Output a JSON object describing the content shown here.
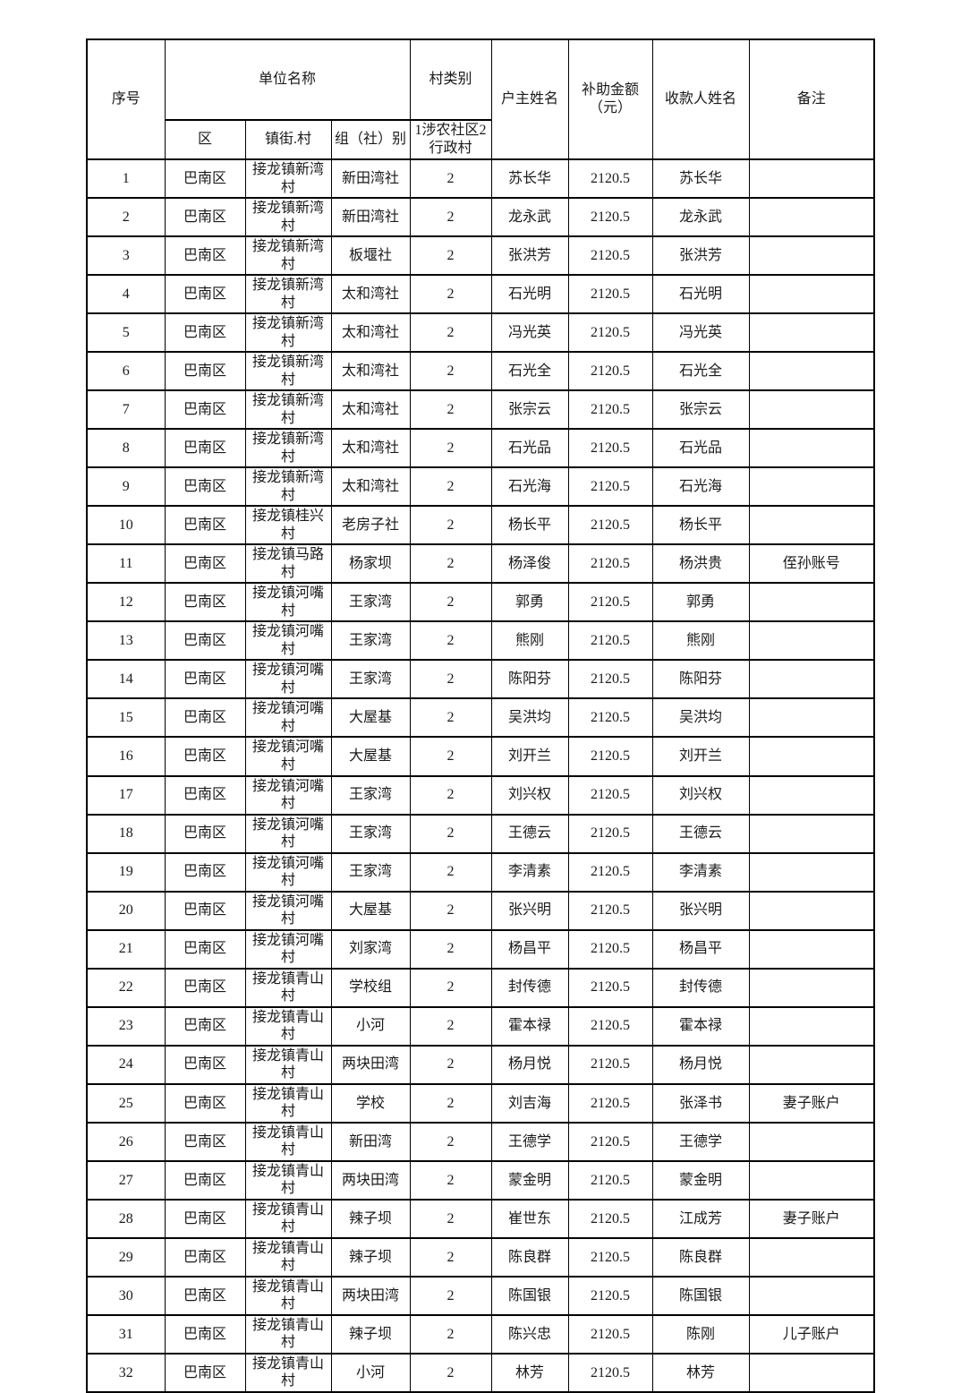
{
  "colors": {
    "background": "#ffffff",
    "border": "#000000",
    "text": "#1a1a1a"
  },
  "table": {
    "header": {
      "seq": "序号",
      "unit_name": "单位名称",
      "district": "区",
      "town_village": "镇街.村",
      "group": "组（社）别",
      "village_type": "村类别",
      "village_type_sub": "1涉农社区2行政村",
      "householder": "户主姓名",
      "subsidy": "补助金额（元）",
      "payee": "收款人姓名",
      "remark": "备注"
    },
    "rows": [
      [
        "1",
        "巴南区",
        "接龙镇新湾村",
        "新田湾社",
        "2",
        "苏长华",
        "2120.5",
        "苏长华",
        ""
      ],
      [
        "2",
        "巴南区",
        "接龙镇新湾村",
        "新田湾社",
        "2",
        "龙永武",
        "2120.5",
        "龙永武",
        ""
      ],
      [
        "3",
        "巴南区",
        "接龙镇新湾村",
        "板堰社",
        "2",
        "张洪芳",
        "2120.5",
        "张洪芳",
        ""
      ],
      [
        "4",
        "巴南区",
        "接龙镇新湾村",
        "太和湾社",
        "2",
        "石光明",
        "2120.5",
        "石光明",
        ""
      ],
      [
        "5",
        "巴南区",
        "接龙镇新湾村",
        "太和湾社",
        "2",
        "冯光英",
        "2120.5",
        "冯光英",
        ""
      ],
      [
        "6",
        "巴南区",
        "接龙镇新湾村",
        "太和湾社",
        "2",
        "石光全",
        "2120.5",
        "石光全",
        ""
      ],
      [
        "7",
        "巴南区",
        "接龙镇新湾村",
        "太和湾社",
        "2",
        "张宗云",
        "2120.5",
        "张宗云",
        ""
      ],
      [
        "8",
        "巴南区",
        "接龙镇新湾村",
        "太和湾社",
        "2",
        "石光品",
        "2120.5",
        "石光品",
        ""
      ],
      [
        "9",
        "巴南区",
        "接龙镇新湾村",
        "太和湾社",
        "2",
        "石光海",
        "2120.5",
        "石光海",
        ""
      ],
      [
        "10",
        "巴南区",
        "接龙镇桂兴村",
        "老房子社",
        "2",
        "杨长平",
        "2120.5",
        "杨长平",
        ""
      ],
      [
        "11",
        "巴南区",
        "接龙镇马路村",
        "杨家坝",
        "2",
        "杨泽俊",
        "2120.5",
        "杨洪贵",
        "侄孙账号"
      ],
      [
        "12",
        "巴南区",
        "接龙镇河嘴村",
        "王家湾",
        "2",
        "郭勇",
        "2120.5",
        "郭勇",
        ""
      ],
      [
        "13",
        "巴南区",
        "接龙镇河嘴村",
        "王家湾",
        "2",
        "熊刚",
        "2120.5",
        "熊刚",
        ""
      ],
      [
        "14",
        "巴南区",
        "接龙镇河嘴村",
        "王家湾",
        "2",
        "陈阳芬",
        "2120.5",
        "陈阳芬",
        ""
      ],
      [
        "15",
        "巴南区",
        "接龙镇河嘴村",
        "大屋基",
        "2",
        "吴洪均",
        "2120.5",
        "吴洪均",
        ""
      ],
      [
        "16",
        "巴南区",
        "接龙镇河嘴村",
        "大屋基",
        "2",
        "刘开兰",
        "2120.5",
        "刘开兰",
        ""
      ],
      [
        "17",
        "巴南区",
        "接龙镇河嘴村",
        "王家湾",
        "2",
        "刘兴权",
        "2120.5",
        "刘兴权",
        ""
      ],
      [
        "18",
        "巴南区",
        "接龙镇河嘴村",
        "王家湾",
        "2",
        "王德云",
        "2120.5",
        "王德云",
        ""
      ],
      [
        "19",
        "巴南区",
        "接龙镇河嘴村",
        "王家湾",
        "2",
        "李清素",
        "2120.5",
        "李清素",
        ""
      ],
      [
        "20",
        "巴南区",
        "接龙镇河嘴村",
        "大屋基",
        "2",
        "张兴明",
        "2120.5",
        "张兴明",
        ""
      ],
      [
        "21",
        "巴南区",
        "接龙镇河嘴村",
        "刘家湾",
        "2",
        "杨昌平",
        "2120.5",
        "杨昌平",
        ""
      ],
      [
        "22",
        "巴南区",
        "接龙镇青山村",
        "学校组",
        "2",
        "封传德",
        "2120.5",
        "封传德",
        ""
      ],
      [
        "23",
        "巴南区",
        "接龙镇青山村",
        "小河",
        "2",
        "霍本禄",
        "2120.5",
        "霍本禄",
        ""
      ],
      [
        "24",
        "巴南区",
        "接龙镇青山村",
        "两块田湾",
        "2",
        "杨月悦",
        "2120.5",
        "杨月悦",
        ""
      ],
      [
        "25",
        "巴南区",
        "接龙镇青山村",
        "学校",
        "2",
        "刘吉海",
        "2120.5",
        "张泽书",
        "妻子账户"
      ],
      [
        "26",
        "巴南区",
        "接龙镇青山村",
        "新田湾",
        "2",
        "王德学",
        "2120.5",
        "王德学",
        ""
      ],
      [
        "27",
        "巴南区",
        "接龙镇青山村",
        "两块田湾",
        "2",
        "蒙金明",
        "2120.5",
        "蒙金明",
        ""
      ],
      [
        "28",
        "巴南区",
        "接龙镇青山村",
        "辣子坝",
        "2",
        "崔世东",
        "2120.5",
        "江成芳",
        "妻子账户"
      ],
      [
        "29",
        "巴南区",
        "接龙镇青山村",
        "辣子坝",
        "2",
        "陈良群",
        "2120.5",
        "陈良群",
        ""
      ],
      [
        "30",
        "巴南区",
        "接龙镇青山村",
        "两块田湾",
        "2",
        "陈国银",
        "2120.5",
        "陈国银",
        ""
      ],
      [
        "31",
        "巴南区",
        "接龙镇青山村",
        "辣子坝",
        "2",
        "陈兴忠",
        "2120.5",
        "陈刚",
        "儿子账户"
      ],
      [
        "32",
        "巴南区",
        "接龙镇青山村",
        "小河",
        "2",
        "林芳",
        "2120.5",
        "林芳",
        ""
      ]
    ]
  }
}
